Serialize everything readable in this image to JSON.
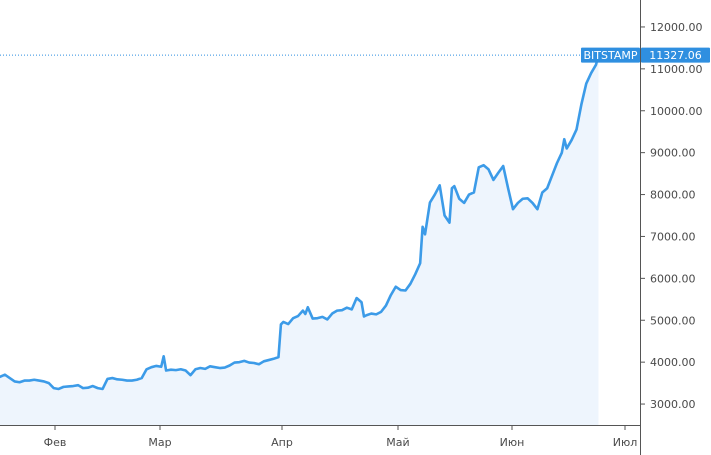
{
  "chart_data": {
    "type": "area",
    "title": "",
    "xlabel": "",
    "ylabel": "",
    "ylim": [
      2500,
      12500
    ],
    "y_ticks": [
      "3000.00",
      "4000.00",
      "5000.00",
      "6000.00",
      "7000.00",
      "8000.00",
      "9000.00",
      "10000.00",
      "11000.00",
      "12000.00"
    ],
    "x_ticks": [
      "Фев",
      "Мар",
      "Апр",
      "Май",
      "Июн",
      "Июл"
    ],
    "series": [
      {
        "name": "BITSTAMP",
        "values": [
          [
            0,
            3650
          ],
          [
            2,
            3700
          ],
          [
            4,
            3620
          ],
          [
            6,
            3540
          ],
          [
            8,
            3520
          ],
          [
            10,
            3560
          ],
          [
            12,
            3560
          ],
          [
            14,
            3580
          ],
          [
            16,
            3560
          ],
          [
            18,
            3540
          ],
          [
            20,
            3500
          ],
          [
            22,
            3380
          ],
          [
            24,
            3360
          ],
          [
            26,
            3410
          ],
          [
            28,
            3420
          ],
          [
            30,
            3430
          ],
          [
            32,
            3450
          ],
          [
            34,
            3380
          ],
          [
            36,
            3390
          ],
          [
            38,
            3430
          ],
          [
            40,
            3380
          ],
          [
            42,
            3360
          ],
          [
            44,
            3600
          ],
          [
            46,
            3620
          ],
          [
            48,
            3590
          ],
          [
            50,
            3580
          ],
          [
            52,
            3560
          ],
          [
            54,
            3560
          ],
          [
            56,
            3580
          ],
          [
            58,
            3620
          ],
          [
            60,
            3830
          ],
          [
            62,
            3880
          ],
          [
            64,
            3910
          ],
          [
            66,
            3890
          ],
          [
            67,
            4140
          ],
          [
            68,
            3800
          ],
          [
            70,
            3820
          ],
          [
            72,
            3810
          ],
          [
            74,
            3830
          ],
          [
            76,
            3800
          ],
          [
            78,
            3690
          ],
          [
            80,
            3830
          ],
          [
            82,
            3860
          ],
          [
            84,
            3840
          ],
          [
            86,
            3900
          ],
          [
            88,
            3880
          ],
          [
            90,
            3860
          ],
          [
            92,
            3870
          ],
          [
            94,
            3920
          ],
          [
            96,
            3990
          ],
          [
            98,
            4000
          ],
          [
            100,
            4030
          ],
          [
            102,
            3990
          ],
          [
            104,
            3980
          ],
          [
            106,
            3950
          ],
          [
            108,
            4020
          ],
          [
            110,
            4050
          ],
          [
            112,
            4080
          ],
          [
            114,
            4120
          ],
          [
            115,
            4900
          ],
          [
            116,
            4960
          ],
          [
            118,
            4910
          ],
          [
            120,
            5050
          ],
          [
            122,
            5100
          ],
          [
            124,
            5230
          ],
          [
            125,
            5150
          ],
          [
            126,
            5310
          ],
          [
            128,
            5040
          ],
          [
            130,
            5050
          ],
          [
            132,
            5080
          ],
          [
            134,
            5020
          ],
          [
            136,
            5160
          ],
          [
            138,
            5230
          ],
          [
            140,
            5240
          ],
          [
            142,
            5300
          ],
          [
            144,
            5260
          ],
          [
            146,
            5530
          ],
          [
            148,
            5430
          ],
          [
            149,
            5090
          ],
          [
            150,
            5120
          ],
          [
            152,
            5160
          ],
          [
            154,
            5140
          ],
          [
            156,
            5200
          ],
          [
            158,
            5350
          ],
          [
            160,
            5600
          ],
          [
            162,
            5800
          ],
          [
            164,
            5720
          ],
          [
            166,
            5710
          ],
          [
            168,
            5870
          ],
          [
            170,
            6100
          ],
          [
            172,
            6360
          ],
          [
            173,
            7230
          ],
          [
            174,
            7050
          ],
          [
            176,
            7810
          ],
          [
            178,
            8000
          ],
          [
            180,
            8220
          ],
          [
            182,
            7500
          ],
          [
            184,
            7330
          ],
          [
            185,
            8150
          ],
          [
            186,
            8200
          ],
          [
            188,
            7900
          ],
          [
            190,
            7800
          ],
          [
            192,
            8000
          ],
          [
            194,
            8050
          ],
          [
            196,
            8650
          ],
          [
            198,
            8700
          ],
          [
            200,
            8600
          ],
          [
            202,
            8350
          ],
          [
            204,
            8520
          ],
          [
            206,
            8680
          ],
          [
            208,
            8150
          ],
          [
            210,
            7650
          ],
          [
            212,
            7800
          ],
          [
            214,
            7900
          ],
          [
            216,
            7910
          ],
          [
            218,
            7800
          ],
          [
            220,
            7650
          ],
          [
            222,
            8050
          ],
          [
            224,
            8150
          ],
          [
            226,
            8450
          ],
          [
            228,
            8750
          ],
          [
            230,
            9000
          ],
          [
            231,
            9320
          ],
          [
            232,
            9100
          ],
          [
            234,
            9300
          ],
          [
            236,
            9550
          ],
          [
            238,
            10150
          ],
          [
            240,
            10650
          ],
          [
            242,
            10900
          ],
          [
            244,
            11100
          ],
          [
            245,
            11327
          ]
        ]
      }
    ],
    "last_value": "11327.06",
    "last_label": "BITSTAMP",
    "colors": {
      "line": "#3c9be8",
      "fill": "#eef5fd",
      "badge": "#2f8fe0",
      "axis": "#555555",
      "dotted": "#2f8fe0"
    },
    "grid": false
  }
}
